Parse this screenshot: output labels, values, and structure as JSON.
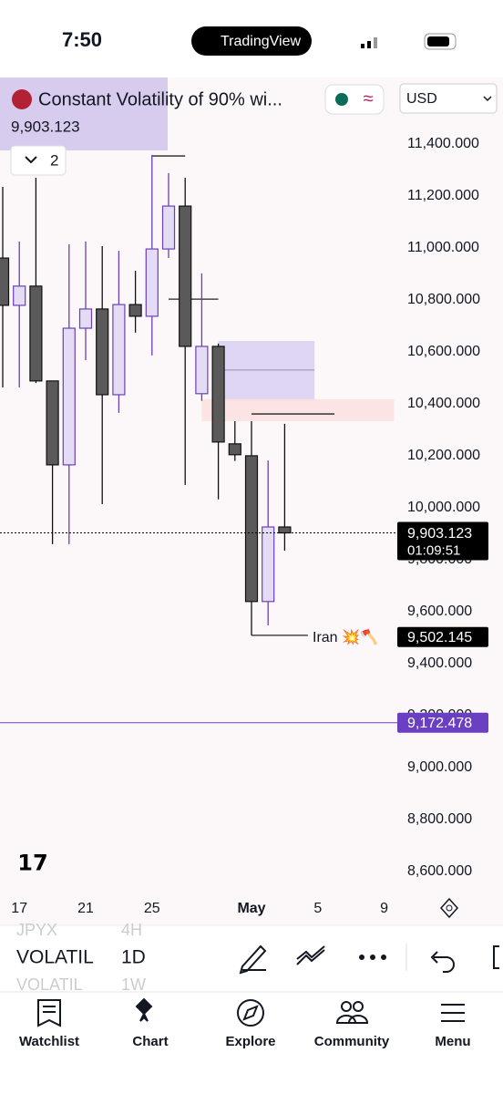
{
  "status_bar": {
    "time": "7:50",
    "app": "TradingView"
  },
  "chart_data": {
    "type": "candlestick",
    "title": "Constant Volatility of 90% wi...",
    "interval_count": "2",
    "currency": "USD",
    "up_color": "#e4dcf4",
    "up_line": "#6b3fb8",
    "down_color": "#5a5a5a",
    "down_line": "#111111",
    "categories": [
      null,
      "17",
      null,
      null,
      null,
      "21",
      null,
      null,
      null,
      "25",
      null,
      null,
      null,
      null,
      null,
      "May",
      null,
      null,
      null,
      "5",
      null,
      null,
      null,
      "9"
    ],
    "open": [
      10961,
      10779,
      10853,
      10488,
      10165,
      10691,
      10765,
      10435,
      10782,
      10737,
      10996,
      11161,
      10439,
      10621,
      10246,
      10200,
      9639,
      9926,
      null,
      null,
      null,
      null,
      null,
      null
    ],
    "high": [
      11235,
      11025,
      11270,
      10488,
      11014,
      11025,
      11007,
      10989,
      10912,
      11358,
      11288,
      11270,
      10902,
      10632,
      10333,
      10333,
      10182,
      10323,
      null,
      null,
      null,
      null,
      null,
      null
    ],
    "low": [
      10463,
      10463,
      10480,
      9860,
      9860,
      10568,
      10014,
      10365,
      10674,
      10586,
      10961,
      10088,
      10411,
      10032,
      10180,
      9509,
      9547,
      9835,
      null,
      null,
      null,
      null,
      null,
      null
    ],
    "close": [
      10779,
      10853,
      10488,
      10165,
      10691,
      10765,
      10435,
      10782,
      10737,
      10996,
      11161,
      10621,
      10621,
      10253,
      10204,
      9639,
      9926,
      9903.123,
      null,
      null,
      null,
      null,
      null,
      null
    ],
    "ylim": [
      8533,
      11656
    ],
    "yticks": [
      {
        "value": 8600,
        "label": "8,600.000"
      },
      {
        "value": 8800,
        "label": "8,800.000"
      },
      {
        "value": 9000,
        "label": "9,000.000"
      },
      {
        "value": 9200,
        "label": "9,200.000"
      },
      {
        "value": 9400,
        "label": "9,400.000"
      },
      {
        "value": 9600,
        "label": "9,600.000"
      },
      {
        "value": 9800,
        "label": "9,800.000"
      },
      {
        "value": 10000,
        "label": "10,000.000"
      },
      {
        "value": 10200,
        "label": "10,200.000"
      },
      {
        "value": 10400,
        "label": "10,400.000"
      },
      {
        "value": 10600,
        "label": "10,600.000"
      },
      {
        "value": 10800,
        "label": "10,800.000"
      },
      {
        "value": 11000,
        "label": "11,000.000"
      },
      {
        "value": 11200,
        "label": "11,200.000"
      },
      {
        "value": 11400,
        "label": "11,400.000"
      }
    ],
    "price_label": {
      "value": 9903.123,
      "label": "9,903.123",
      "countdown": "01:09:51"
    },
    "levels": [
      {
        "value": 9502.145,
        "label": "9,502.145",
        "note": "Iran 💥🪓",
        "color": "#000000"
      },
      {
        "value": 9172.478,
        "label": "9,172.478",
        "color": "#6a3fc1"
      }
    ],
    "zones": [
      {
        "low": 10411,
        "high": 10642,
        "mid": 10530,
        "from": 13,
        "to": 18.8,
        "color": "#d9d0f2"
      },
      {
        "low": 10333,
        "high": 10418,
        "from": 12,
        "to": 23.6,
        "color": "#fbe0e0"
      }
    ],
    "segments": [
      {
        "value": 11354,
        "from": 9,
        "to": 11
      },
      {
        "value": 10803,
        "from": 10,
        "to": 13
      },
      {
        "value": 10361,
        "from": 15,
        "to": 20
      },
      {
        "value": 9509,
        "from": 15,
        "to": 18.4
      }
    ]
  },
  "toolbar": {
    "rows": [
      [
        "JPYX",
        "4H"
      ],
      [
        "VOLATIL",
        "1D"
      ],
      [
        "VOLATIL",
        "1W"
      ]
    ]
  },
  "nav": [
    "Watchlist",
    "Chart",
    "Explore",
    "Community",
    "Menu"
  ]
}
